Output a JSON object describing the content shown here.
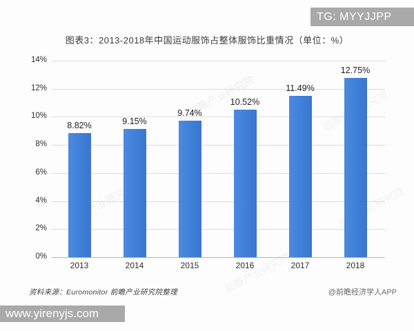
{
  "badge": {
    "label": "TG: MYYJJPP"
  },
  "chart_data": {
    "type": "bar",
    "title": "图表3：2013-2018年中国运动服饰占整体服饰比重情况（单位：%）",
    "categories": [
      "2013",
      "2014",
      "2015",
      "2016",
      "2017",
      "2018"
    ],
    "values": [
      8.82,
      9.15,
      9.74,
      10.52,
      11.49,
      12.75
    ],
    "value_labels": [
      "8.82%",
      "9.15%",
      "9.74%",
      "10.52%",
      "11.49%",
      "12.75%"
    ],
    "y_ticks": [
      "0%",
      "2%",
      "4%",
      "6%",
      "8%",
      "10%",
      "12%",
      "14%"
    ],
    "ylim": [
      0,
      14
    ],
    "xlabel": "",
    "ylabel": "",
    "unit": "%",
    "grid": true,
    "legend": "none",
    "bar_color": "#4181d9",
    "gridline_color": "#dcdcdc"
  },
  "footer": {
    "source": "资料来源：Euromonitor 前瞻产业研究院整理",
    "credit": "@前瞻经济学人APP"
  },
  "watermark": {
    "url": "www.yirenyjs.com",
    "brand": "前瞻产业研究院"
  },
  "colors": {
    "accent_blue": "#4181d9",
    "badge_gray": "#a9a9a9",
    "text_dark": "#2e2e2e"
  }
}
